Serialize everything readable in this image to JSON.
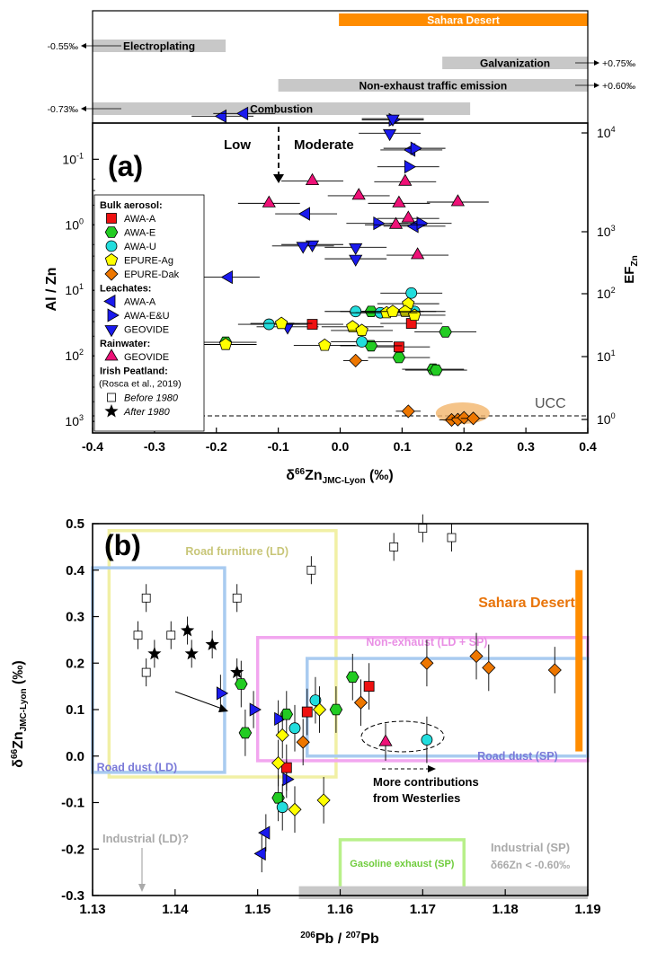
{
  "chart_data": [
    {
      "type": "scatter",
      "panel_label": "(a)",
      "xlabel": "δ66ZnJMC-Lyon (‰)",
      "ylabel": "Al / Zn",
      "ylabel_right": "EFZn",
      "xlim": [
        -0.4,
        0.4
      ],
      "ylog": true,
      "ylim": [
        1500,
        0.028
      ],
      "x_ticks": [
        "-0.4",
        "-0.3",
        "-0.2",
        "-0.1",
        "0.0",
        "0.1",
        "0.2",
        "0.3",
        "0.4"
      ],
      "y_ticks": [
        "10-1",
        "100",
        "101",
        "102",
        "103"
      ],
      "y_right_ticks": [
        "104",
        "103",
        "102",
        "101",
        "100"
      ],
      "zones": {
        "low": "Low",
        "moderate": "Moderate"
      },
      "ucc_label": "UCC",
      "sources": [
        {
          "label": "Sahara Desert",
          "x0": -0.002,
          "x1": 0.4,
          "color": "#ff8c00",
          "text_color": "#ffffff"
        },
        {
          "label": "Electroplating",
          "x0": -0.4,
          "x1": -0.185,
          "color": "#c8c8c8",
          "text_color": "#000000",
          "arrow_left": "-0.55‰"
        },
        {
          "label": "Galvanization",
          "x0": 0.165,
          "x1": 0.4,
          "color": "#c8c8c8",
          "text_color": "#000000",
          "arrow_right": "+0.75‰"
        },
        {
          "label": "Non-exhaust traffic emission",
          "x0": -0.1,
          "x1": 0.4,
          "color": "#c8c8c8",
          "text_color": "#000000",
          "arrow_right": "+0.60‰"
        },
        {
          "label": "Combustion",
          "x0": -0.4,
          "x1": 0.21,
          "color": "#c8c8c8",
          "text_color": "#000000",
          "arrow_left": "-0.73‰"
        }
      ],
      "legend": {
        "groups": [
          {
            "title": "Bulk aerosol:",
            "items": [
              {
                "label": "AWA-A",
                "marker": "square",
                "color": "#ee1111"
              },
              {
                "label": "AWA-E",
                "marker": "hexagon",
                "color": "#22cc22"
              },
              {
                "label": "AWA-U",
                "marker": "circle",
                "color": "#22dddd"
              },
              {
                "label": "EPURE-Ag",
                "marker": "pentagon",
                "color": "#ffff00"
              },
              {
                "label": "EPURE-Dak",
                "marker": "diamond",
                "color": "#ee7700"
              }
            ]
          },
          {
            "title": "Leachates:",
            "items": [
              {
                "label": "AWA-A",
                "marker": "tri-left",
                "color": "#1a1aee"
              },
              {
                "label": "AWA-E&U",
                "marker": "tri-right",
                "color": "#1a1aee"
              },
              {
                "label": "GEOVIDE",
                "marker": "tri-down",
                "color": "#1a1aee"
              }
            ]
          },
          {
            "title": "Rainwater:",
            "items": [
              {
                "label": "GEOVIDE",
                "marker": "tri-up",
                "color": "#ee1177"
              }
            ]
          },
          {
            "title": "Irish Peatland:",
            "subtitle": "(Rosca et al., 2019)",
            "items": [
              {
                "label": "Before 1980",
                "marker": "open-square",
                "color": "#000000"
              },
              {
                "label": "After 1980",
                "marker": "star",
                "color": "#000000"
              }
            ]
          }
        ]
      },
      "series": [
        {
          "name": "AWA-A (leachates)",
          "marker": "tri-left",
          "color": "#1a1aee",
          "points": [
            {
              "x": -0.19,
              "y": 0.022,
              "xerr": 0.05
            },
            {
              "x": -0.155,
              "y": 0.02,
              "xerr": 0.05
            },
            {
              "x": -0.055,
              "y": 0.68,
              "xerr": 0.05
            },
            {
              "x": 0.115,
              "y": 0.072,
              "xerr": 0.05
            },
            {
              "x": 0.12,
              "y": 1.05,
              "xerr": 0.05
            },
            {
              "x": -0.18,
              "y": 6.3,
              "xerr": 0.05
            }
          ]
        },
        {
          "name": "AWA-E&U (leachates)",
          "marker": "tri-right",
          "color": "#1a1aee",
          "points": [
            {
              "x": 0.12,
              "y": 0.068,
              "xerr": 0.05
            },
            {
              "x": 0.085,
              "y": 0.025,
              "xerr": 0.05
            },
            {
              "x": 0.13,
              "y": 0.95,
              "xerr": 0.05
            },
            {
              "x": 0.06,
              "y": 0.95,
              "xerr": 0.05
            },
            {
              "x": 0.11,
              "y": 0.13,
              "xerr": 0.05
            }
          ]
        },
        {
          "name": "GEOVIDE (leachates)",
          "marker": "tri-down",
          "color": "#1a1aee",
          "points": [
            {
              "x": 0.085,
              "y": 0.024,
              "xerr": 0.05
            },
            {
              "x": -0.045,
              "y": 2.0,
              "xerr": 0.05
            },
            {
              "x": -0.06,
              "y": 2.1,
              "xerr": 0.05
            },
            {
              "x": 0.025,
              "y": 2.2,
              "xerr": 0.05
            },
            {
              "x": 0.025,
              "y": 3.3,
              "xerr": 0.05
            },
            {
              "x": 0.08,
              "y": 0.04,
              "xerr": 0.05
            },
            {
              "x": -0.085,
              "y": 36,
              "xerr": 0.05
            }
          ]
        },
        {
          "name": "GEOVIDE (rainwater)",
          "marker": "tri-up",
          "color": "#ee1177",
          "points": [
            {
              "x": -0.045,
              "y": 0.215,
              "xerr": 0.05
            },
            {
              "x": 0.105,
              "y": 0.22,
              "xerr": 0.05
            },
            {
              "x": 0.03,
              "y": 0.36,
              "xerr": 0.05
            },
            {
              "x": 0.09,
              "y": 1.0,
              "xerr": 0.05
            },
            {
              "x": 0.19,
              "y": 0.45,
              "xerr": 0.05
            },
            {
              "x": 0.095,
              "y": 0.47,
              "xerr": 0.05
            },
            {
              "x": -0.115,
              "y": 0.47,
              "xerr": 0.05
            },
            {
              "x": 0.125,
              "y": 2.9,
              "xerr": 0.05
            },
            {
              "x": 0.11,
              "y": 0.8,
              "xerr": 0.05
            }
          ]
        },
        {
          "name": "AWA-A (bulk)",
          "marker": "square",
          "color": "#ee1111",
          "points": [
            {
              "x": -0.045,
              "y": 33,
              "xerr": 0.05
            },
            {
              "x": 0.095,
              "y": 73,
              "xerr": 0.05
            },
            {
              "x": 0.115,
              "y": 32,
              "xerr": 0.05
            }
          ]
        },
        {
          "name": "AWA-E (bulk)",
          "marker": "hexagon",
          "color": "#22cc22",
          "points": [
            {
              "x": -0.185,
              "y": 62,
              "xerr": 0.05
            },
            {
              "x": 0.05,
              "y": 21,
              "xerr": 0.05
            },
            {
              "x": 0.17,
              "y": 43,
              "xerr": 0.05
            },
            {
              "x": 0.095,
              "y": 106,
              "xerr": 0.05
            },
            {
              "x": 0.15,
              "y": 160,
              "xerr": 0.05
            },
            {
              "x": 0.05,
              "y": 70,
              "xerr": 0.05
            },
            {
              "x": 0.155,
              "y": 165,
              "xerr": 0.05
            }
          ]
        },
        {
          "name": "AWA-U (bulk)",
          "marker": "circle",
          "color": "#22dddd",
          "points": [
            {
              "x": 0.025,
              "y": 21,
              "xerr": 0.05
            },
            {
              "x": 0.035,
              "y": 61,
              "xerr": 0.05
            },
            {
              "x": 0.065,
              "y": 22,
              "xerr": 0.05
            },
            {
              "x": 0.115,
              "y": 11,
              "xerr": 0.05
            },
            {
              "x": -0.115,
              "y": 33,
              "xerr": 0.05
            },
            {
              "x": 0.12,
              "y": 21,
              "xerr": 0.05
            }
          ]
        },
        {
          "name": "EPURE-Ag (bulk)",
          "marker": "pentagon",
          "color": "#ffff00",
          "points": [
            {
              "x": 0.11,
              "y": 16,
              "xerr": 0.05
            },
            {
              "x": 0.105,
              "y": 21,
              "xerr": 0.05
            },
            {
              "x": 0.12,
              "y": 24,
              "xerr": 0.05
            },
            {
              "x": 0.075,
              "y": 22,
              "xerr": 0.05
            },
            {
              "x": -0.095,
              "y": 32,
              "xerr": 0.05
            },
            {
              "x": 0.02,
              "y": 36,
              "xerr": 0.05
            },
            {
              "x": -0.025,
              "y": 69,
              "xerr": 0.05
            },
            {
              "x": -0.185,
              "y": 67,
              "xerr": 0.05
            },
            {
              "x": 0.035,
              "y": 41,
              "xerr": 0.05
            },
            {
              "x": 0.085,
              "y": 21,
              "xerr": 0.05
            }
          ]
        },
        {
          "name": "EPURE-Dak (bulk)",
          "marker": "diamond",
          "color": "#ee7700",
          "points": [
            {
              "x": 0.025,
              "y": 118,
              "xerr": 0.02
            },
            {
              "x": 0.11,
              "y": 700,
              "xerr": 0.02
            },
            {
              "x": 0.18,
              "y": 950,
              "xerr": 0.02
            },
            {
              "x": 0.19,
              "y": 940,
              "xerr": 0.02
            },
            {
              "x": 0.2,
              "y": 880,
              "xerr": 0.02
            },
            {
              "x": 0.215,
              "y": 900,
              "xerr": 0.02
            }
          ]
        }
      ]
    },
    {
      "type": "scatter",
      "panel_label": "(b)",
      "xlabel": "206Pb / 207Pb",
      "ylabel": "δ66ZnJMC-Lyon (‰)",
      "xlim": [
        1.13,
        1.19
      ],
      "ylim": [
        -0.3,
        0.5
      ],
      "x_ticks": [
        "1.13",
        "1.14",
        "1.15",
        "1.16",
        "1.17",
        "1.18",
        "1.19"
      ],
      "y_ticks": [
        "-0.3",
        "-0.2",
        "-0.1",
        "0.0",
        "0.1",
        "0.2",
        "0.3",
        "0.4",
        "0.5"
      ],
      "regions": [
        {
          "label": "Road furniture (LD)",
          "color": "#f1f0a5",
          "x": [
            1.132,
            1.1595
          ],
          "y": [
            -0.045,
            0.485
          ]
        },
        {
          "label": "Road dust (LD)",
          "color": "#a9cbf0",
          "x": [
            1.13,
            1.146
          ],
          "y": [
            -0.035,
            0.405
          ]
        },
        {
          "label": "Non-exhaust (LD + SP)",
          "color": "#f2a6ef",
          "x": [
            1.15,
            1.19
          ],
          "y": [
            -0.01,
            0.255
          ]
        },
        {
          "label": "Road dust (SP)",
          "color": "#a9cbf0",
          "x": [
            1.156,
            1.19
          ],
          "y": [
            0.0,
            0.21
          ]
        },
        {
          "label": "Gasoline exhaust (SP)",
          "color": "#b8f08a",
          "x": [
            1.16,
            1.175
          ],
          "y": [
            -0.3,
            -0.18
          ]
        }
      ],
      "annotations": {
        "sahara": "Sahara Desert",
        "industrial_ld": "Industrial (LD)?",
        "industrial_sp": "Industrial (SP)",
        "industrial_sp_note": "δ66Zn < -0.60‰",
        "westerlies_1": "More contributions",
        "westerlies_2": "from Westerlies"
      },
      "series": [
        {
          "name": "Before 1980",
          "marker": "open-square",
          "color": "#000000",
          "points": [
            {
              "x": 1.1355,
              "y": 0.26,
              "yerr": 0.03
            },
            {
              "x": 1.1365,
              "y": 0.34,
              "yerr": 0.03
            },
            {
              "x": 1.1365,
              "y": 0.18,
              "yerr": 0.03
            },
            {
              "x": 1.1395,
              "y": 0.26,
              "yerr": 0.03
            },
            {
              "x": 1.1475,
              "y": 0.34,
              "yerr": 0.03
            },
            {
              "x": 1.1565,
              "y": 0.4,
              "yerr": 0.03
            },
            {
              "x": 1.1665,
              "y": 0.45,
              "yerr": 0.03
            },
            {
              "x": 1.17,
              "y": 0.49,
              "yerr": 0.03
            },
            {
              "x": 1.1735,
              "y": 0.47,
              "yerr": 0.03
            }
          ]
        },
        {
          "name": "After 1980",
          "marker": "star",
          "color": "#000000",
          "points": [
            {
              "x": 1.1375,
              "y": 0.22,
              "yerr": 0.03
            },
            {
              "x": 1.1415,
              "y": 0.27,
              "yerr": 0.03
            },
            {
              "x": 1.142,
              "y": 0.22,
              "yerr": 0.03
            },
            {
              "x": 1.1445,
              "y": 0.24,
              "yerr": 0.03
            },
            {
              "x": 1.1475,
              "y": 0.18,
              "yerr": 0.03
            }
          ]
        },
        {
          "name": "AWA-A (leachates)",
          "marker": "tri-left",
          "color": "#1a1aee",
          "points": [
            {
              "x": 1.151,
              "y": -0.165,
              "yerr": 0.04
            },
            {
              "x": 1.1505,
              "y": -0.21,
              "yerr": 0.04
            }
          ]
        },
        {
          "name": "AWA-E&U (leachates)",
          "marker": "tri-right",
          "color": "#1a1aee",
          "points": [
            {
              "x": 1.1455,
              "y": 0.135,
              "yerr": 0.04
            },
            {
              "x": 1.1495,
              "y": 0.1,
              "yerr": 0.04
            },
            {
              "x": 1.1525,
              "y": 0.08,
              "yerr": 0.04
            },
            {
              "x": 1.1535,
              "y": -0.05,
              "yerr": 0.04
            }
          ]
        },
        {
          "name": "GEOVIDE (rainwater)",
          "marker": "tri-up",
          "color": "#ee1177",
          "points": [
            {
              "x": 1.1655,
              "y": 0.03,
              "yerr": 0.04
            }
          ]
        },
        {
          "name": "AWA-A (bulk)",
          "marker": "square",
          "color": "#ee1111",
          "points": [
            {
              "x": 1.1535,
              "y": -0.025,
              "yerr": 0.05
            },
            {
              "x": 1.156,
              "y": 0.095,
              "yerr": 0.05
            },
            {
              "x": 1.1635,
              "y": 0.15,
              "yerr": 0.05
            }
          ]
        },
        {
          "name": "AWA-E (bulk)",
          "marker": "hexagon",
          "color": "#22cc22",
          "points": [
            {
              "x": 1.148,
              "y": 0.155,
              "yerr": 0.05
            },
            {
              "x": 1.1485,
              "y": 0.05,
              "yerr": 0.05
            },
            {
              "x": 1.1525,
              "y": -0.09,
              "yerr": 0.05
            },
            {
              "x": 1.1535,
              "y": 0.09,
              "yerr": 0.05
            },
            {
              "x": 1.1595,
              "y": 0.1,
              "yerr": 0.05
            },
            {
              "x": 1.1615,
              "y": 0.17,
              "yerr": 0.05
            }
          ]
        },
        {
          "name": "AWA-U (bulk)",
          "marker": "circle",
          "color": "#22dddd",
          "points": [
            {
              "x": 1.153,
              "y": -0.11,
              "yerr": 0.05
            },
            {
              "x": 1.1545,
              "y": 0.06,
              "yerr": 0.05
            },
            {
              "x": 1.157,
              "y": 0.12,
              "yerr": 0.05
            },
            {
              "x": 1.1705,
              "y": 0.035,
              "yerr": 0.05
            }
          ]
        },
        {
          "name": "EPURE-Ag (bulk)",
          "marker": "diamond",
          "color": "#ffff00",
          "points": [
            {
              "x": 1.1525,
              "y": -0.015,
              "yerr": 0.05
            },
            {
              "x": 1.153,
              "y": 0.045,
              "yerr": 0.05
            },
            {
              "x": 1.1545,
              "y": -0.115,
              "yerr": 0.05
            },
            {
              "x": 1.1575,
              "y": 0.1,
              "yerr": 0.05
            },
            {
              "x": 1.158,
              "y": -0.095,
              "yerr": 0.05
            }
          ]
        },
        {
          "name": "EPURE-Dak (bulk)",
          "marker": "diamond",
          "color": "#ee7700",
          "points": [
            {
              "x": 1.1555,
              "y": 0.03,
              "yerr": 0.05
            },
            {
              "x": 1.1625,
              "y": 0.115,
              "yerr": 0.05
            },
            {
              "x": 1.1705,
              "y": 0.2,
              "yerr": 0.05
            },
            {
              "x": 1.1765,
              "y": 0.215,
              "yerr": 0.05
            },
            {
              "x": 1.178,
              "y": 0.19,
              "yerr": 0.05
            },
            {
              "x": 1.186,
              "y": 0.185,
              "yerr": 0.05
            }
          ]
        }
      ]
    }
  ]
}
